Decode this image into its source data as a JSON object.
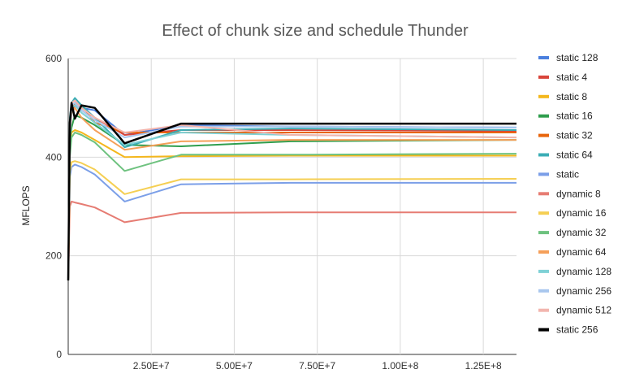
{
  "chart_data": {
    "type": "line",
    "title": "Effect of chunk size and schedule Thunder",
    "xlabel": "",
    "ylabel": "MFLOPS",
    "xlim": [
      0,
      135000000
    ],
    "ylim": [
      0,
      600
    ],
    "x_ticks": [
      25000000,
      50000000,
      75000000,
      100000000,
      125000000
    ],
    "x_tick_labels": [
      "2.50E+7",
      "5.00E+7",
      "7.50E+7",
      "1.00E+8",
      "1.25E+8"
    ],
    "y_ticks": [
      0,
      200,
      400,
      600
    ],
    "y_tick_labels": [
      "0",
      "200",
      "400",
      "600"
    ],
    "grid": true,
    "legend_position": "right",
    "x": [
      0,
      500000,
      1000000,
      2000000,
      4000000,
      8000000,
      17000000,
      34000000,
      67000000,
      135000000
    ],
    "series": [
      {
        "name": "static 128",
        "color": "#4a7fde",
        "values": [
          150,
          450,
          490,
          505,
          500,
          495,
          445,
          465,
          462,
          460
        ]
      },
      {
        "name": "static 4",
        "color": "#d9453b",
        "values": [
          150,
          440,
          495,
          505,
          500,
          480,
          445,
          455,
          455,
          453
        ]
      },
      {
        "name": "static 8",
        "color": "#f4b71c",
        "values": [
          150,
          420,
          450,
          455,
          450,
          435,
          400,
          402,
          403,
          403
        ]
      },
      {
        "name": "static 16",
        "color": "#2f9e4d",
        "values": [
          150,
          430,
          460,
          485,
          480,
          465,
          425,
          422,
          432,
          435
        ]
      },
      {
        "name": "static 32",
        "color": "#e8650c",
        "values": [
          150,
          450,
          500,
          510,
          505,
          470,
          450,
          450,
          450,
          450
        ]
      },
      {
        "name": "static 64",
        "color": "#3aadb5",
        "values": [
          150,
          480,
          510,
          520,
          505,
          480,
          420,
          455,
          458,
          455
        ]
      },
      {
        "name": "static",
        "color": "#7b9fe8",
        "values": [
          150,
          360,
          380,
          385,
          380,
          365,
          310,
          345,
          348,
          348
        ]
      },
      {
        "name": "dynamic 8",
        "color": "#e67c73",
        "values": [
          150,
          300,
          310,
          308,
          305,
          298,
          268,
          287,
          288,
          288
        ]
      },
      {
        "name": "dynamic 16",
        "color": "#f5cf53",
        "values": [
          150,
          370,
          390,
          392,
          388,
          375,
          325,
          355,
          355,
          356
        ]
      },
      {
        "name": "dynamic 32",
        "color": "#6ec27f",
        "values": [
          150,
          400,
          440,
          450,
          445,
          430,
          372,
          405,
          405,
          407
        ]
      },
      {
        "name": "dynamic 64",
        "color": "#f5a05a",
        "values": [
          150,
          440,
          490,
          500,
          480,
          455,
          415,
          432,
          435,
          435
        ]
      },
      {
        "name": "dynamic 128",
        "color": "#7fd1d6",
        "values": [
          150,
          440,
          500,
          505,
          490,
          470,
          425,
          450,
          445,
          440
        ]
      },
      {
        "name": "dynamic 256",
        "color": "#a9c7ee",
        "values": [
          150,
          450,
          505,
          510,
          495,
          475,
          440,
          462,
          462,
          460
        ]
      },
      {
        "name": "dynamic 512",
        "color": "#f2b5ae",
        "values": [
          150,
          460,
          510,
          515,
          500,
          480,
          450,
          465,
          445,
          440
        ]
      },
      {
        "name": "static 256",
        "color": "#000000",
        "values": [
          150,
          470,
          510,
          478,
          505,
          500,
          428,
          468,
          468,
          468
        ]
      }
    ]
  }
}
